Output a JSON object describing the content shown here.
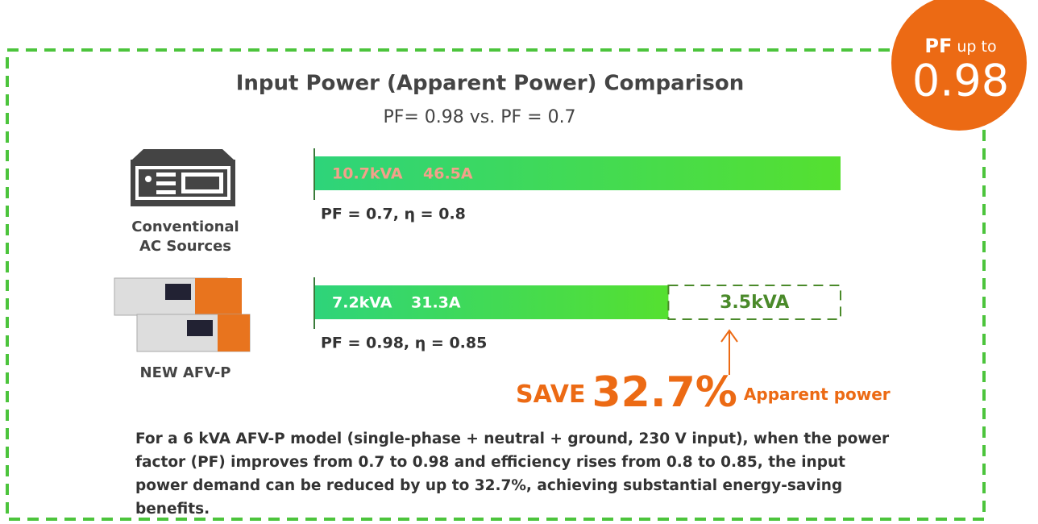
{
  "badge": {
    "prefix": "PF",
    "text": "up to",
    "value": "0.98"
  },
  "title": "Input Power (Apparent Power) Comparison",
  "subtitle": "PF= 0.98 vs. PF = 0.7",
  "rows": [
    {
      "name_lines": [
        "Conventional",
        "AC Sources"
      ],
      "kva": 10.7,
      "kva_label": "10.7kVA",
      "current": "46.5A",
      "params": "PF = 0.7, η = 0.8"
    },
    {
      "name_lines": [
        "NEW AFV-P"
      ],
      "kva": 7.2,
      "kva_label": "7.2kVA",
      "current": "31.3A",
      "params": "PF = 0.98, η = 0.85",
      "saving": 3.5,
      "saving_label": "3.5kVA"
    }
  ],
  "save": {
    "prefix": "SAVE",
    "value": "32.7%",
    "suffix": "Apparent power"
  },
  "note": "For a 6 kVA AFV-P model (single-phase + neutral + ground, 230 V input), when the power factor (PF) improves from 0.7 to 0.98 and efficiency rises from 0.8 to 0.85, the input power demand can be reduced by up to 32.7%, achieving substantial energy-saving benefits."
}
